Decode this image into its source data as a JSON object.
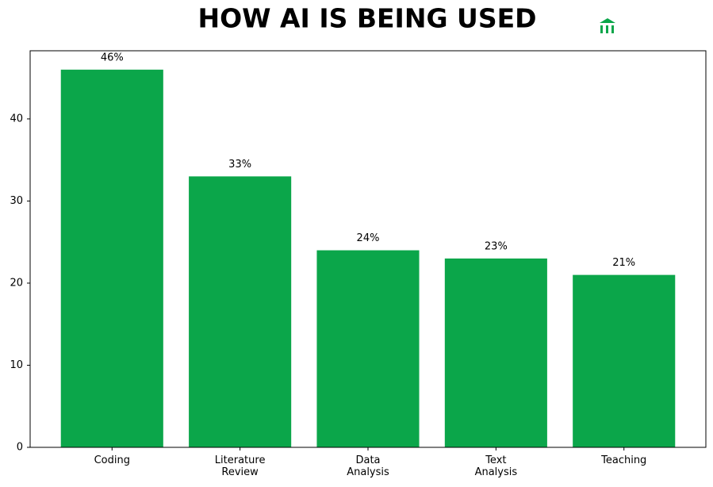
{
  "chart_data": {
    "type": "bar",
    "title": "HOW AI IS BEING USED",
    "categories": [
      "Coding",
      "Literature Review",
      "Data Analysis",
      "Text Analysis",
      "Teaching"
    ],
    "values": [
      46,
      33,
      24,
      23,
      21
    ],
    "value_labels": [
      "46%",
      "33%",
      "24%",
      "23%",
      "21%"
    ],
    "color": "#0ba64a",
    "ylim": [
      0,
      48.3
    ],
    "yticks": [
      0,
      10,
      20,
      30,
      40
    ],
    "grid": false
  }
}
